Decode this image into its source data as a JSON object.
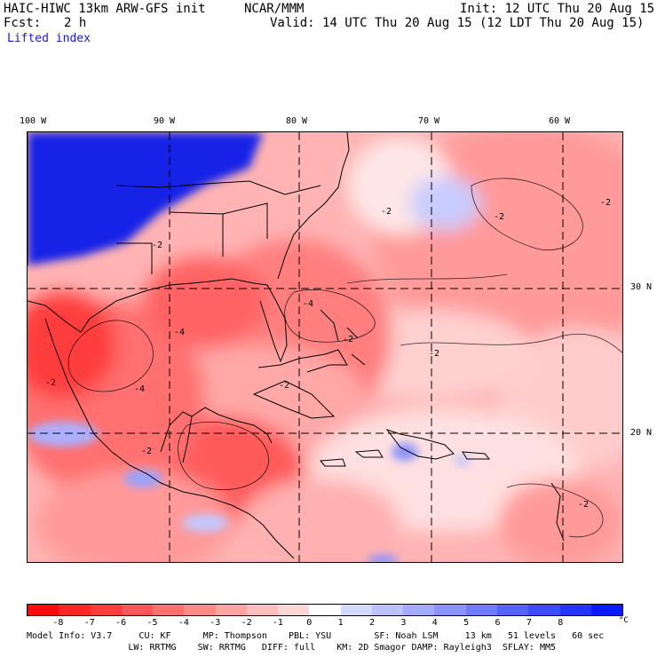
{
  "header": {
    "model": "HAIC-HIWC 13km ARW-GFS init",
    "org": "NCAR/MMM",
    "init": "Init: 12 UTC Thu 20 Aug 15",
    "fcst_label": "Fcst:",
    "fcst_value": "2 h",
    "valid": "Valid: 14 UTC Thu 20 Aug 15 (12 LDT Thu 20 Aug 15)",
    "field": "Lifted index"
  },
  "map": {
    "lon_labels": [
      "100 W",
      "90 W",
      "80 W",
      "70 W",
      "60 W"
    ],
    "lat_labels": [
      "30 N",
      "20 N"
    ],
    "contour_labels": [
      "-2",
      "-2",
      "-2",
      "-2",
      "-2",
      "-2",
      "-4",
      "-4",
      "-4",
      "-2",
      "-2",
      "-2",
      "-2"
    ],
    "colors": {
      "deep_blue": "#0b1ee6",
      "land_blue": "#1122dd"
    }
  },
  "colorbar": {
    "ticks": [
      "-8",
      "-7",
      "-6",
      "-5",
      "-4",
      "-3",
      "-2",
      "-1",
      "0",
      "1",
      "2",
      "3",
      "4",
      "5",
      "6",
      "7",
      "8"
    ],
    "unit": "°C",
    "colors": [
      "#ff0a0a",
      "#ff2626",
      "#ff3d3d",
      "#ff5757",
      "#ff7070",
      "#ff8a8a",
      "#ffa3a3",
      "#ffbdbd",
      "#ffd6d6",
      "#ffffff",
      "#d6d9ff",
      "#bdc2ff",
      "#a3aaff",
      "#8a93ff",
      "#707bff",
      "#5763ff",
      "#3d4cff",
      "#2634ff",
      "#0a1cff"
    ]
  },
  "model_info": {
    "line1": "Model Info: V3.7     CU: KF      MP: Thompson    PBL: YSU        SF: Noah LSM     13 km   51 levels   60 sec",
    "line2": "                   LW: RRTMG    SW: RRTMG   DIFF: full    KM: 2D Smagor DAMP: Rayleigh3  SFLAY: MM5"
  }
}
